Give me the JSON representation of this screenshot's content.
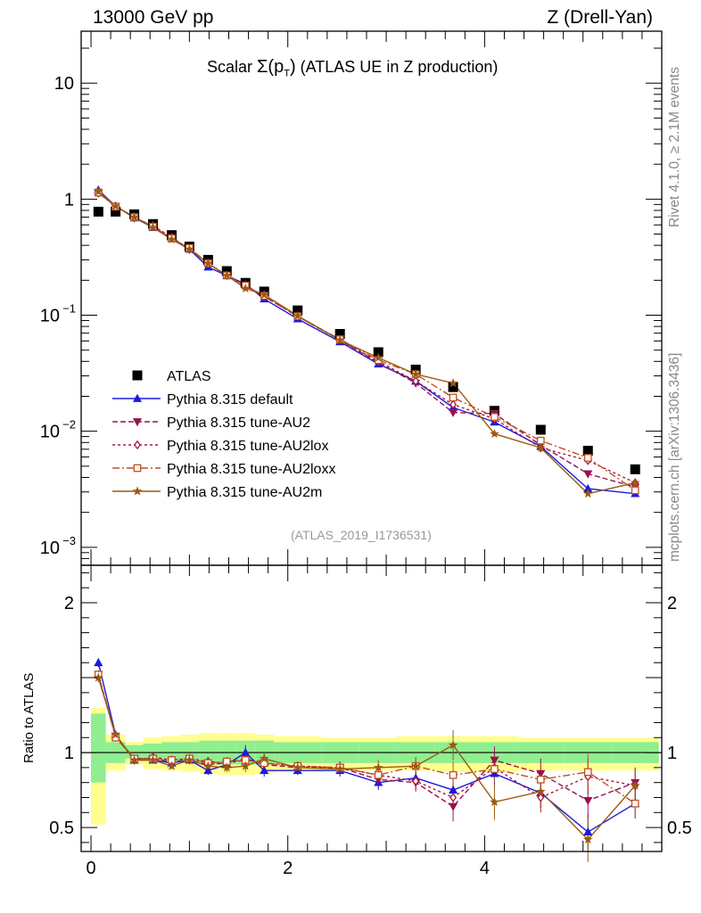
{
  "header": {
    "left": "13000 GeV pp",
    "right": "Z (Drell-Yan)"
  },
  "side_labels": {
    "rivet": "Rivet 4.1.0, ≥ 2.1M events",
    "mcplots": "mcplots.cern.ch [arXiv:1306.3436]"
  },
  "reference": "(ATLAS_2019_I1736531)",
  "title": {
    "prefix": "Scalar",
    "sigma": "Σ(p",
    "sub": "T",
    "close": ")",
    "suffix": "(ATLAS UE in Z production)"
  },
  "chart_data": [
    {
      "type": "scatter",
      "panel": "main",
      "yscale": "log",
      "xlim": [
        -0.1,
        5.8
      ],
      "ylim": [
        0.0007,
        28
      ],
      "y_ticks": [
        {
          "value": 10,
          "label": "10"
        },
        {
          "value": 1,
          "label": "1"
        },
        {
          "value": 0.1,
          "label": "10",
          "exp": "−1"
        },
        {
          "value": 0.01,
          "label": "10",
          "exp": "−2"
        },
        {
          "value": 0.001,
          "label": "10",
          "exp": "−3"
        }
      ],
      "x": [
        0.075,
        0.25,
        0.44,
        0.63,
        0.82,
        1.0,
        1.19,
        1.38,
        1.57,
        1.76,
        2.1,
        2.53,
        2.92,
        3.3,
        3.68,
        4.1,
        4.57,
        5.05,
        5.53
      ],
      "series": [
        {
          "name": "ATLAS",
          "color": "#000000",
          "marker": "square",
          "line": "none",
          "values": [
            0.78,
            0.78,
            0.74,
            0.61,
            0.49,
            0.39,
            0.3,
            0.24,
            0.19,
            0.16,
            0.11,
            0.069,
            0.048,
            0.034,
            0.024,
            0.015,
            0.0103,
            0.0068,
            0.0047
          ]
        },
        {
          "name": "Pythia 8.315 default",
          "color": "#1a1adf",
          "marker": "triangle-up",
          "line": "solid",
          "values": [
            1.2,
            0.87,
            0.69,
            0.57,
            0.46,
            0.37,
            0.26,
            0.22,
            0.185,
            0.138,
            0.093,
            0.059,
            0.038,
            0.027,
            0.016,
            0.012,
            0.0074,
            0.0032,
            0.0029
          ]
        },
        {
          "name": "Pythia 8.315 tune-AU2",
          "color": "#9b1050",
          "marker": "triangle-down",
          "line": "dashed",
          "values": [
            1.14,
            0.87,
            0.7,
            0.58,
            0.46,
            0.37,
            0.28,
            0.22,
            0.18,
            0.145,
            0.098,
            0.061,
            0.039,
            0.026,
            0.0145,
            0.0142,
            0.0076,
            0.0043,
            0.0033
          ]
        },
        {
          "name": "Pythia 8.315 tune-AU2lox",
          "color": "#a8173a",
          "marker": "diamond-open",
          "line": "dashdot",
          "values": [
            1.13,
            0.87,
            0.69,
            0.59,
            0.47,
            0.37,
            0.28,
            0.22,
            0.18,
            0.145,
            0.098,
            0.061,
            0.04,
            0.027,
            0.017,
            0.0128,
            0.0072,
            0.0056,
            0.0036
          ]
        },
        {
          "name": "Pythia 8.315 tune-AU2loxx",
          "color": "#c05020",
          "marker": "square-open",
          "line": "dashdot2",
          "values": [
            1.14,
            0.86,
            0.7,
            0.58,
            0.46,
            0.38,
            0.28,
            0.22,
            0.18,
            0.147,
            0.098,
            0.062,
            0.041,
            0.031,
            0.0195,
            0.0133,
            0.0083,
            0.0059,
            0.0031
          ]
        },
        {
          "name": "Pythia 8.315 tune-AU2m",
          "color": "#9a5a10",
          "marker": "star",
          "line": "solid",
          "values": [
            1.16,
            0.87,
            0.7,
            0.57,
            0.45,
            0.37,
            0.28,
            0.22,
            0.17,
            0.15,
            0.099,
            0.061,
            0.043,
            0.031,
            0.026,
            0.0095,
            0.0072,
            0.0029,
            0.0036
          ]
        }
      ]
    },
    {
      "type": "scatter",
      "panel": "ratio",
      "ylabel": "Ratio to ATLAS",
      "xlim": [
        -0.1,
        5.8
      ],
      "ylim": [
        0.34,
        2.25
      ],
      "y_ticks": [
        {
          "value": 0.5,
          "label": "0.5"
        },
        {
          "value": 1,
          "label": "1"
        },
        {
          "value": 2,
          "label": "2"
        }
      ],
      "x_ticks": [
        {
          "value": 0,
          "label": "0"
        },
        {
          "value": 2,
          "label": "2"
        },
        {
          "value": 4,
          "label": "4"
        }
      ],
      "bin_edges": [
        0,
        0.15,
        0.35,
        0.53,
        0.72,
        0.91,
        1.1,
        1.29,
        1.48,
        1.67,
        1.86,
        2.34,
        2.72,
        3.11,
        3.49,
        3.87,
        4.34,
        4.81,
        5.29,
        5.77
      ],
      "band_green": [
        [
          0.8,
          1.26
        ],
        [
          0.93,
          1.07
        ],
        [
          0.96,
          1.05
        ],
        [
          0.95,
          1.06
        ],
        [
          0.94,
          1.07
        ],
        [
          0.93,
          1.07
        ],
        [
          0.92,
          1.08
        ],
        [
          0.92,
          1.08
        ],
        [
          0.92,
          1.08
        ],
        [
          0.92,
          1.08
        ],
        [
          0.93,
          1.07
        ],
        [
          0.93,
          1.07
        ],
        [
          0.93,
          1.07
        ],
        [
          0.93,
          1.07
        ],
        [
          0.93,
          1.07
        ],
        [
          0.93,
          1.07
        ],
        [
          0.93,
          1.07
        ],
        [
          0.93,
          1.07
        ],
        [
          0.93,
          1.07
        ]
      ],
      "band_yellow": [
        [
          0.52,
          1.3
        ],
        [
          0.88,
          1.12
        ],
        [
          0.92,
          1.07
        ],
        [
          0.89,
          1.1
        ],
        [
          0.88,
          1.11
        ],
        [
          0.87,
          1.12
        ],
        [
          0.86,
          1.13
        ],
        [
          0.85,
          1.13
        ],
        [
          0.85,
          1.13
        ],
        [
          0.86,
          1.12
        ],
        [
          0.87,
          1.11
        ],
        [
          0.88,
          1.1
        ],
        [
          0.88,
          1.1
        ],
        [
          0.88,
          1.11
        ],
        [
          0.87,
          1.11
        ],
        [
          0.87,
          1.11
        ],
        [
          0.88,
          1.1
        ],
        [
          0.88,
          1.1
        ],
        [
          0.88,
          1.1
        ]
      ],
      "series": [
        {
          "name": "Pythia 8.315 default",
          "color": "#1a1adf",
          "marker": "triangle-up",
          "line": "solid",
          "values": [
            1.6,
            1.12,
            0.95,
            0.95,
            0.93,
            0.95,
            0.88,
            0.92,
            1.0,
            0.88,
            0.88,
            0.88,
            0.8,
            0.83,
            0.75,
            0.86,
            0.73,
            0.47,
            0.66
          ],
          "errors": [
            0.03,
            0.02,
            0.02,
            0.02,
            0.02,
            0.02,
            0.03,
            0.03,
            0.05,
            0.04,
            0.03,
            0.04,
            0.05,
            0.05,
            0.08,
            0.08,
            0.1,
            0.12,
            0.1
          ]
        },
        {
          "name": "Pythia 8.315 tune-AU2",
          "color": "#9b1050",
          "marker": "triangle-down",
          "line": "dashed",
          "values": [
            1.52,
            1.11,
            0.96,
            0.96,
            0.94,
            0.95,
            0.92,
            0.93,
            0.96,
            0.92,
            0.9,
            0.9,
            0.82,
            0.8,
            0.64,
            0.95,
            0.86,
            0.68,
            0.8
          ],
          "errors": [
            0.03,
            0.02,
            0.02,
            0.02,
            0.02,
            0.02,
            0.03,
            0.03,
            0.04,
            0.04,
            0.03,
            0.04,
            0.05,
            0.06,
            0.1,
            0.09,
            0.1,
            0.12,
            0.1
          ]
        },
        {
          "name": "Pythia 8.315 tune-AU2lox",
          "color": "#a8173a",
          "marker": "diamond-open",
          "line": "dashdot",
          "values": [
            1.51,
            1.11,
            0.95,
            0.97,
            0.95,
            0.96,
            0.94,
            0.93,
            0.95,
            0.93,
            0.91,
            0.9,
            0.85,
            0.81,
            0.7,
            0.9,
            0.7,
            0.84,
            0.78
          ],
          "errors": [
            0.03,
            0.02,
            0.02,
            0.02,
            0.02,
            0.02,
            0.03,
            0.03,
            0.04,
            0.04,
            0.03,
            0.04,
            0.05,
            0.06,
            0.09,
            0.09,
            0.1,
            0.12,
            0.1
          ]
        },
        {
          "name": "Pythia 8.315 tune-AU2loxx",
          "color": "#c05020",
          "marker": "square-open",
          "line": "dashdot2",
          "values": [
            1.52,
            1.1,
            0.96,
            0.96,
            0.95,
            0.96,
            0.93,
            0.94,
            0.95,
            0.93,
            0.91,
            0.9,
            0.85,
            0.91,
            0.85,
            0.89,
            0.82,
            0.87,
            0.66
          ],
          "errors": [
            0.03,
            0.02,
            0.02,
            0.02,
            0.02,
            0.02,
            0.03,
            0.03,
            0.04,
            0.04,
            0.03,
            0.04,
            0.05,
            0.06,
            0.09,
            0.09,
            0.1,
            0.12,
            0.1
          ]
        },
        {
          "name": "Pythia 8.315 tune-AU2m",
          "color": "#9a5a10",
          "marker": "star",
          "line": "solid",
          "values": [
            1.5,
            1.12,
            0.95,
            0.95,
            0.91,
            0.95,
            0.91,
            0.9,
            0.91,
            0.96,
            0.9,
            0.89,
            0.9,
            0.91,
            1.05,
            0.67,
            0.74,
            0.42,
            0.78
          ],
          "errors": [
            0.03,
            0.02,
            0.02,
            0.02,
            0.02,
            0.02,
            0.03,
            0.03,
            0.04,
            0.04,
            0.03,
            0.04,
            0.05,
            0.06,
            0.1,
            0.12,
            0.1,
            0.15,
            0.12
          ]
        }
      ]
    }
  ]
}
